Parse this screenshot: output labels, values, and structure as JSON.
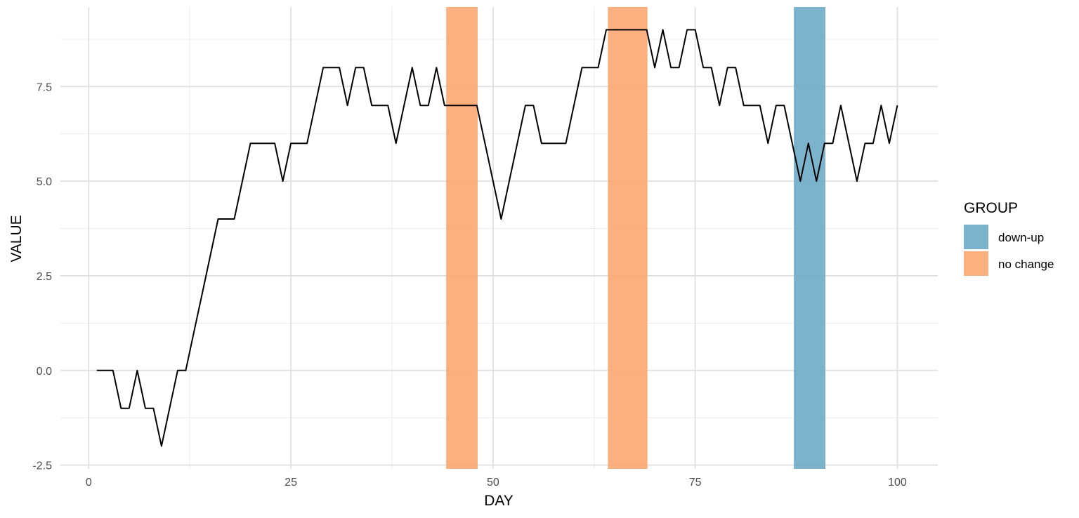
{
  "chart_data": {
    "type": "line",
    "title": "",
    "xlabel": "DAY",
    "ylabel": "VALUE",
    "xlim": [
      -3.5,
      105
    ],
    "ylim": [
      -2.6,
      9.6
    ],
    "x_ticks": [
      0,
      25,
      50,
      75,
      100
    ],
    "x_tick_labels": [
      "0",
      "25",
      "50",
      "75",
      "100"
    ],
    "y_ticks": [
      -2.5,
      0,
      2.5,
      5,
      7.5
    ],
    "y_tick_labels": [
      "-2.5",
      "0.0",
      "2.5",
      "5.0",
      "7.5"
    ],
    "grid": true,
    "line_color": "#000000",
    "series": [
      {
        "x": [
          1,
          2,
          3,
          4,
          5,
          6,
          7,
          8,
          9,
          10,
          11,
          12,
          13,
          14,
          15,
          16,
          17,
          18,
          19,
          20,
          21,
          22,
          23,
          24,
          25,
          26,
          27,
          28,
          29,
          30,
          31,
          32,
          33,
          34,
          35,
          36,
          37,
          38,
          39,
          40,
          41,
          42,
          43,
          44,
          45,
          46,
          47,
          48,
          49,
          50,
          51,
          52,
          53,
          54,
          55,
          56,
          57,
          58,
          59,
          60,
          61,
          62,
          63,
          64,
          65,
          66,
          67,
          68,
          69,
          70,
          71,
          72,
          73,
          74,
          75,
          76,
          77,
          78,
          79,
          80,
          81,
          82,
          83,
          84,
          85,
          86,
          87,
          88,
          89,
          90,
          91,
          92,
          93,
          94,
          95,
          96,
          97,
          98,
          99,
          100
        ],
        "values": [
          0,
          0,
          0,
          -1,
          -1,
          0,
          -1,
          -1,
          -2,
          -1,
          0,
          0,
          1,
          2,
          3,
          4,
          4,
          4,
          5,
          6,
          6,
          6,
          6,
          5,
          6,
          6,
          6,
          7,
          8,
          8,
          8,
          7,
          8,
          8,
          7,
          7,
          7,
          6,
          7,
          8,
          7,
          7,
          8,
          7,
          7,
          7,
          7,
          7,
          6,
          5,
          4,
          5,
          6,
          7,
          7,
          6,
          6,
          6,
          6,
          7,
          8,
          8,
          8,
          9,
          9,
          9,
          9,
          9,
          9,
          8,
          9,
          8,
          8,
          9,
          9,
          8,
          8,
          7,
          8,
          8,
          7,
          7,
          7,
          6,
          7,
          7,
          6,
          5,
          6,
          5,
          6,
          6,
          7,
          6,
          5,
          6,
          6,
          7,
          6,
          7
        ]
      }
    ],
    "bands": [
      {
        "group": "no change",
        "x_start": 44.2,
        "x_end": 48.1
      },
      {
        "group": "no change",
        "x_start": 64.2,
        "x_end": 69.1
      },
      {
        "group": "down-up",
        "x_start": 87.2,
        "x_end": 91.1
      }
    ],
    "legend": {
      "title": "GROUP",
      "placement": "right",
      "entries": [
        {
          "label": "down-up",
          "color": "#6aa8c5"
        },
        {
          "label": "no change",
          "color": "#fda56d"
        }
      ]
    }
  }
}
